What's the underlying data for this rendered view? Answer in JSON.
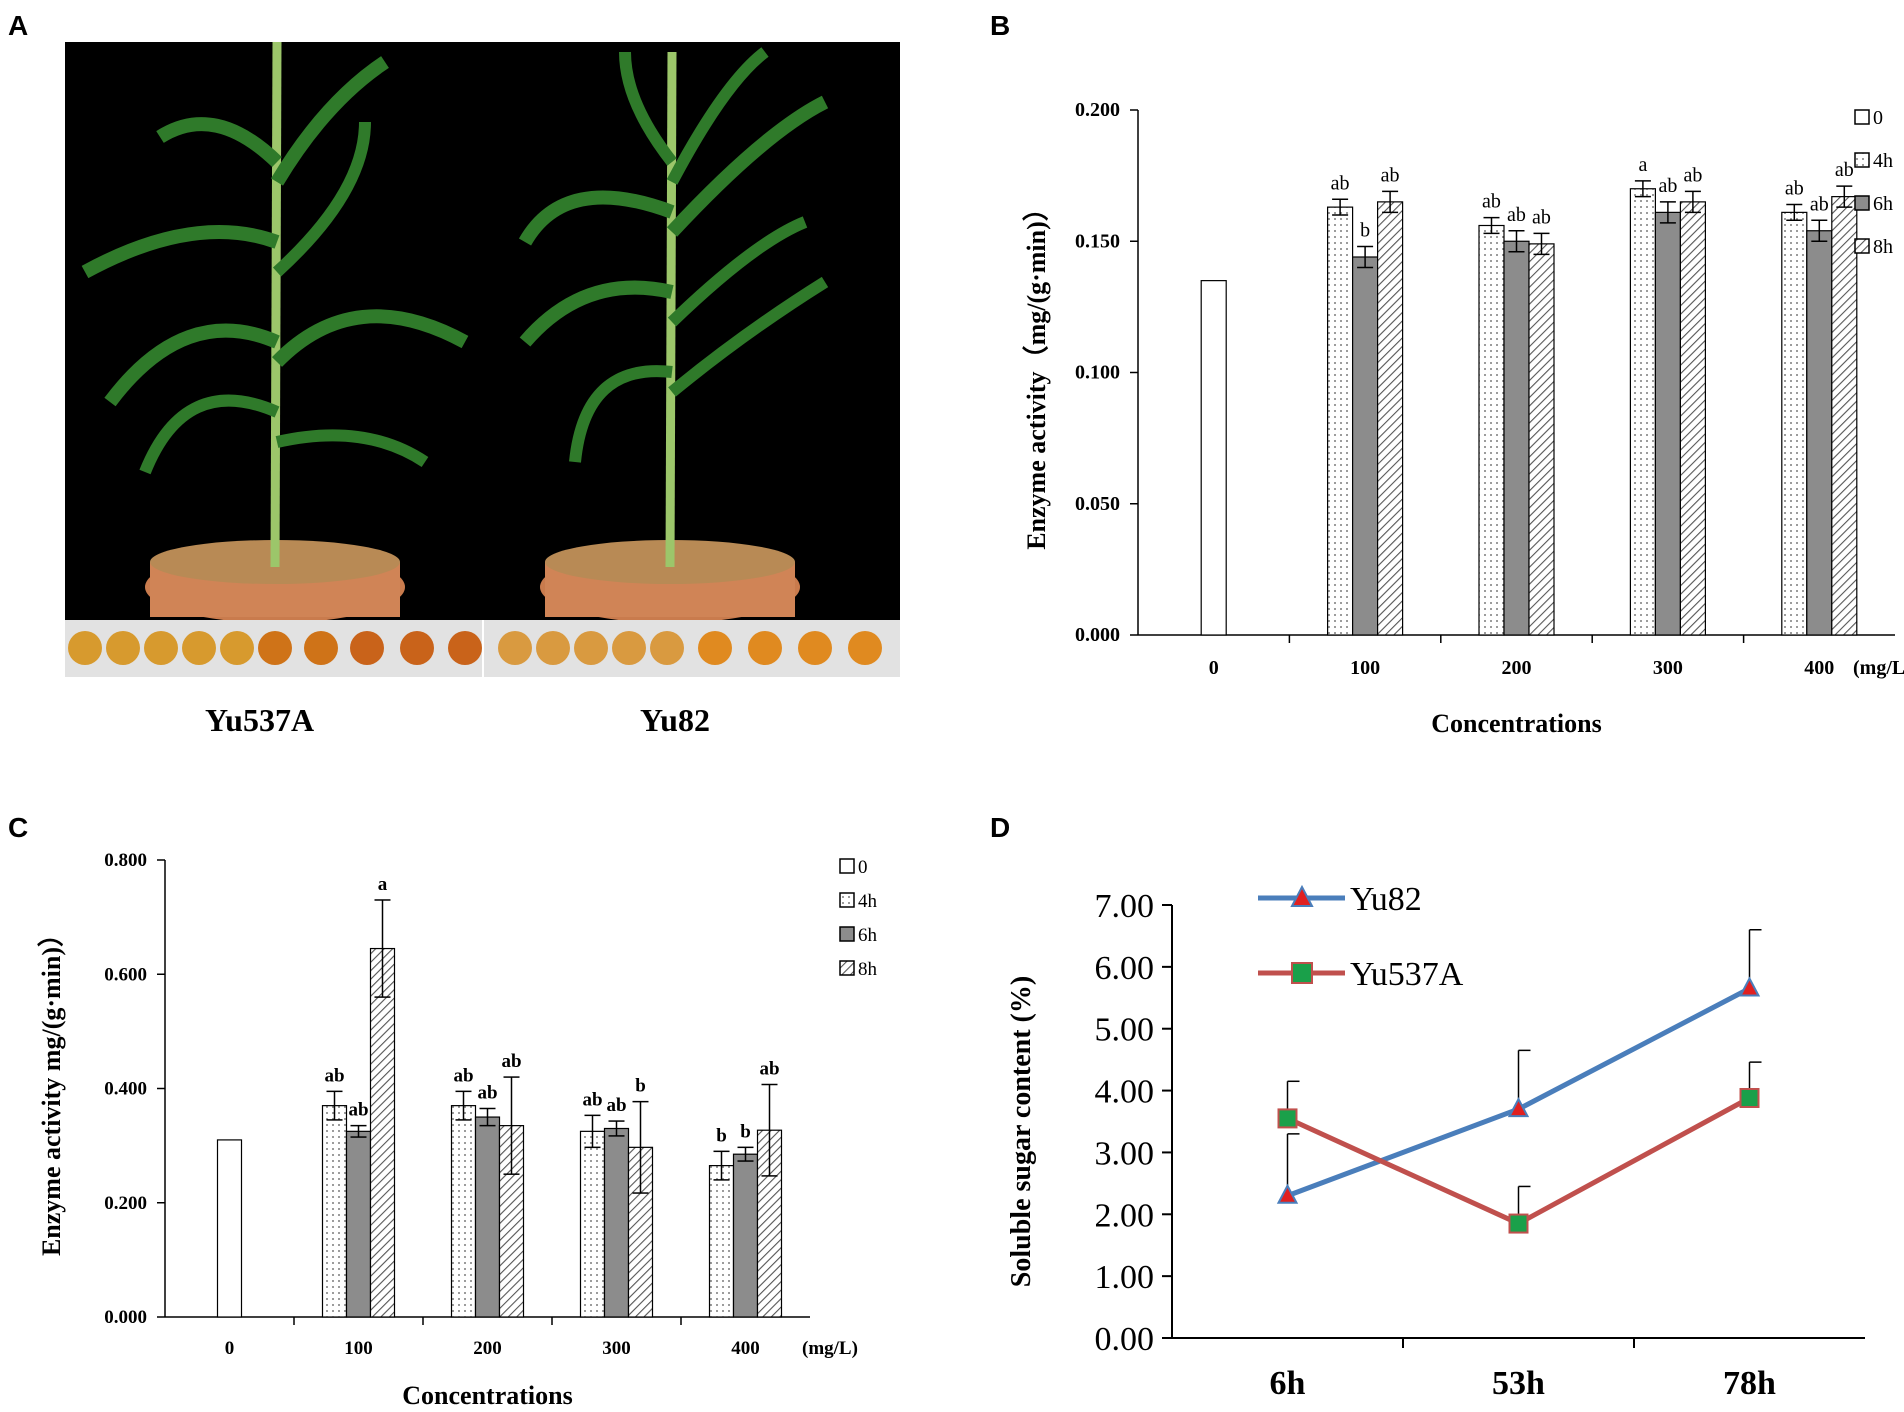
{
  "panels": {
    "a": {
      "label": "A"
    },
    "b": {
      "label": "B"
    },
    "c": {
      "label": "C"
    },
    "d": {
      "label": "D"
    }
  },
  "photo": {
    "variety_left": "Yu537A",
    "variety_right": "Yu82",
    "background": "#000000",
    "leaf_color": "#2f7a2a",
    "pot_color": "#d08456"
  },
  "chart_data": [
    {
      "id": "B",
      "type": "bar",
      "title": "",
      "xlabel": "Concentrations",
      "ylabel": "Enzyme activity（mg/(g·min)）",
      "unit_label": "(mg/L)",
      "categories": [
        "0",
        "100",
        "200",
        "300",
        "400"
      ],
      "ylim": [
        0,
        0.2
      ],
      "yticks": [
        "0.000",
        "0.050",
        "0.100",
        "0.150",
        "0.200"
      ],
      "legend": [
        "0",
        "4h",
        "6h",
        "8h"
      ],
      "legend_position": "top-right",
      "series": [
        {
          "name": "0",
          "pattern": "white",
          "values": [
            0.135,
            null,
            null,
            null,
            null
          ],
          "errors": [
            0,
            null,
            null,
            null,
            null
          ],
          "labels": [
            "",
            "",
            "",
            "",
            ""
          ]
        },
        {
          "name": "4h",
          "pattern": "dots",
          "values": [
            null,
            0.163,
            0.156,
            0.17,
            0.161
          ],
          "errors": [
            null,
            0.003,
            0.003,
            0.003,
            0.003
          ],
          "labels": [
            "",
            "ab",
            "ab",
            "a",
            "ab"
          ]
        },
        {
          "name": "6h",
          "pattern": "gray",
          "values": [
            null,
            0.144,
            0.15,
            0.161,
            0.154
          ],
          "errors": [
            null,
            0.004,
            0.004,
            0.004,
            0.004
          ],
          "labels": [
            "",
            "b",
            "ab",
            "ab",
            "ab"
          ]
        },
        {
          "name": "8h",
          "pattern": "hatch",
          "values": [
            null,
            0.165,
            0.149,
            0.165,
            0.167
          ],
          "errors": [
            null,
            0.004,
            0.004,
            0.004,
            0.004
          ],
          "labels": [
            "",
            "ab",
            "ab",
            "ab",
            "ab"
          ]
        }
      ]
    },
    {
      "id": "C",
      "type": "bar",
      "title": "",
      "xlabel": "Concentrations",
      "ylabel": "Enzyme activity mg/(g·min)）",
      "unit_label": "(mg/L)",
      "categories": [
        "0",
        "100",
        "200",
        "300",
        "400"
      ],
      "ylim": [
        0,
        0.8
      ],
      "yticks": [
        "0.000",
        "0.200",
        "0.400",
        "0.600",
        "0.800"
      ],
      "legend": [
        "0",
        "4h",
        "6h",
        "8h"
      ],
      "legend_position": "top-right",
      "series": [
        {
          "name": "0",
          "pattern": "white",
          "values": [
            0.31,
            null,
            null,
            null,
            null
          ],
          "errors": [
            0,
            null,
            null,
            null,
            null
          ],
          "labels": [
            "",
            "",
            "",
            "",
            ""
          ]
        },
        {
          "name": "4h",
          "pattern": "dots",
          "values": [
            null,
            0.37,
            0.37,
            0.325,
            0.265
          ],
          "errors": [
            null,
            0.025,
            0.025,
            0.028,
            0.025
          ],
          "labels": [
            "",
            "ab",
            "ab",
            "ab",
            "b"
          ]
        },
        {
          "name": "6h",
          "pattern": "gray",
          "values": [
            null,
            0.325,
            0.35,
            0.33,
            0.285
          ],
          "errors": [
            null,
            0.01,
            0.015,
            0.013,
            0.012
          ],
          "labels": [
            "",
            "ab",
            "ab",
            "ab",
            "b"
          ]
        },
        {
          "name": "8h",
          "pattern": "hatch",
          "values": [
            null,
            0.645,
            0.335,
            0.297,
            0.327
          ],
          "errors": [
            null,
            0.085,
            0.085,
            0.08,
            0.08
          ],
          "labels": [
            "",
            "a",
            "ab",
            "b",
            "ab"
          ]
        }
      ]
    },
    {
      "id": "D",
      "type": "line",
      "title": "",
      "xlabel": "",
      "ylabel": "Soluble sugar content (%)",
      "categories": [
        "6h",
        "53h",
        "78h"
      ],
      "ylim": [
        0,
        7
      ],
      "yticks": [
        "0.00",
        "1.00",
        "2.00",
        "3.00",
        "4.00",
        "5.00",
        "6.00",
        "7.00"
      ],
      "legend_position": "top-left",
      "series": [
        {
          "name": "Yu82",
          "color": "#4a7ebb",
          "marker": "triangle",
          "marker_color": "#e02020",
          "values": [
            2.3,
            3.7,
            5.65
          ],
          "errors": [
            1.0,
            0.95,
            0.95
          ]
        },
        {
          "name": "Yu537A",
          "color": "#c0504d",
          "marker": "square",
          "marker_color": "#1aa04a",
          "values": [
            3.55,
            1.85,
            3.88
          ],
          "errors": [
            0.6,
            0.6,
            0.58
          ]
        }
      ]
    }
  ]
}
